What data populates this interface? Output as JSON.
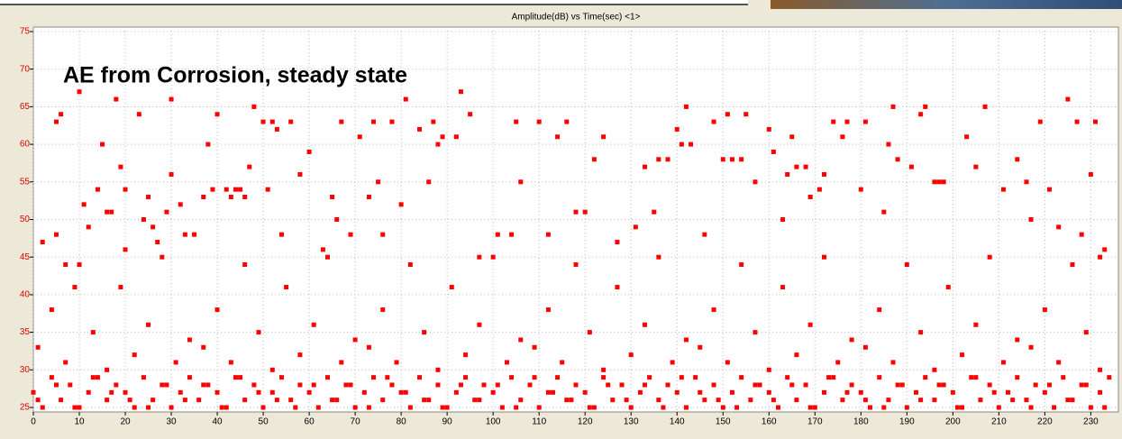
{
  "chart_data": {
    "type": "scatter",
    "title": "Amplitude(dB) vs Time(sec) <1>",
    "annotation": "AE from Corrosion, steady state",
    "color": "#ff0000",
    "grid": true,
    "xlim": [
      0,
      236
    ],
    "ylim": [
      24.4,
      75.6
    ],
    "xticks": [
      0,
      10,
      20,
      30,
      40,
      50,
      60,
      70,
      80,
      90,
      100,
      110,
      120,
      130,
      140,
      150,
      160,
      170,
      180,
      190,
      200,
      210,
      220,
      230
    ],
    "yticks": [
      25,
      30,
      35,
      40,
      45,
      50,
      55,
      60,
      65,
      70,
      75
    ],
    "x": [
      2,
      5,
      5,
      6,
      7,
      10,
      9,
      11,
      12,
      14,
      15,
      16,
      17,
      18,
      19,
      20,
      20,
      23,
      24,
      25,
      26,
      27,
      29,
      30,
      30,
      32,
      33,
      35,
      37,
      38,
      39,
      40,
      42,
      43,
      44,
      45,
      46,
      47,
      48,
      50,
      51,
      52,
      53,
      54,
      56,
      58,
      60,
      63,
      65,
      66,
      67,
      69,
      71,
      73,
      74,
      75,
      76,
      78,
      80,
      81,
      84,
      86,
      87,
      88,
      89,
      92,
      93,
      95,
      97,
      101,
      104,
      105,
      106,
      110,
      112,
      114,
      116,
      118,
      120,
      122,
      124,
      127,
      131,
      133,
      135,
      136,
      138,
      140,
      141,
      142,
      143,
      146,
      148,
      150,
      151,
      152,
      154,
      155,
      157,
      160,
      161,
      163,
      164,
      165,
      166,
      168,
      169,
      171,
      172,
      174,
      176,
      177,
      180,
      181,
      185,
      186,
      187,
      188,
      191,
      193,
      194,
      196,
      197,
      198,
      203,
      205,
      207,
      211,
      214,
      216,
      217,
      219,
      221,
      223,
      225,
      227,
      228,
      230,
      231,
      232,
      233,
      0,
      2,
      4,
      6,
      8,
      10,
      12,
      14,
      16,
      18,
      20,
      22,
      24,
      26,
      28,
      30,
      32,
      34,
      36,
      38,
      40,
      42,
      44,
      46,
      48,
      50,
      52,
      54,
      56,
      58,
      60,
      62,
      64,
      66,
      68,
      70,
      72,
      74,
      76,
      78,
      80,
      82,
      84,
      86,
      88,
      90,
      92,
      94,
      96,
      98,
      100,
      102,
      104,
      106,
      108,
      110,
      112,
      114,
      116,
      118,
      120,
      122,
      124,
      126,
      128,
      130,
      132,
      134,
      136,
      138,
      140,
      142,
      144,
      146,
      148,
      150,
      152,
      154,
      156,
      158,
      160,
      162,
      164,
      166,
      168,
      170,
      172,
      174,
      176,
      178,
      180,
      182,
      184,
      186,
      188,
      190,
      192,
      194,
      196,
      198,
      200,
      202,
      204,
      206,
      208,
      210,
      212,
      214,
      216,
      218,
      220,
      222,
      224,
      226,
      228,
      230,
      232,
      234,
      1,
      5,
      9,
      13,
      17,
      21,
      25,
      29,
      33,
      37,
      41,
      45,
      49,
      53,
      57,
      61,
      65,
      69,
      73,
      77,
      81,
      85,
      89,
      93,
      97,
      101,
      105,
      109,
      113,
      117,
      121,
      125,
      129,
      133,
      137,
      141,
      145,
      149,
      153,
      157,
      161,
      165,
      169,
      173,
      177,
      181,
      185,
      189,
      193,
      197,
      201,
      205,
      209,
      213,
      217,
      221,
      225,
      229,
      233,
      1,
      4,
      7,
      10,
      13,
      16,
      19,
      22,
      25,
      28,
      31,
      34,
      37,
      40,
      43,
      46,
      49,
      52,
      55,
      58,
      61,
      64,
      67,
      70,
      73,
      76,
      79,
      82,
      85,
      88,
      91,
      94,
      97,
      100,
      103,
      106,
      109,
      112,
      115,
      118,
      121,
      124,
      127,
      130,
      133,
      136,
      139,
      142,
      145,
      148,
      151,
      154,
      157,
      160,
      163,
      166,
      169,
      172,
      175,
      178,
      181,
      184,
      187,
      190,
      193,
      196,
      199,
      202,
      205,
      208,
      211,
      214,
      217,
      220,
      223,
      226,
      229,
      232
    ],
    "values": [
      47,
      63,
      48,
      64,
      44,
      67,
      41,
      52,
      49,
      54,
      60,
      51,
      51,
      66,
      57,
      54,
      46,
      64,
      50,
      53,
      49,
      47,
      51,
      66,
      56,
      52,
      48,
      48,
      53,
      60,
      54,
      64,
      54,
      53,
      54,
      54,
      53,
      57,
      65,
      63,
      54,
      63,
      62,
      48,
      63,
      56,
      59,
      46,
      53,
      50,
      63,
      48,
      61,
      53,
      63,
      55,
      48,
      63,
      52,
      66,
      62,
      55,
      63,
      60,
      61,
      61,
      67,
      64,
      45,
      48,
      48,
      63,
      55,
      63,
      48,
      61,
      63,
      51,
      51,
      58,
      61,
      47,
      49,
      57,
      51,
      58,
      58,
      62,
      60,
      65,
      60,
      48,
      63,
      58,
      64,
      58,
      58,
      64,
      55,
      62,
      59,
      50,
      56,
      61,
      57,
      57,
      53,
      54,
      56,
      63,
      61,
      63,
      54,
      63,
      51,
      60,
      65,
      58,
      57,
      64,
      65,
      55,
      55,
      55,
      61,
      57,
      65,
      54,
      58,
      55,
      50,
      63,
      54,
      49,
      66,
      63,
      48,
      56,
      63,
      45,
      46,
      27,
      25,
      29,
      26,
      28,
      25,
      27,
      29,
      26,
      28,
      27,
      25,
      29,
      26,
      28,
      25,
      27,
      29,
      26,
      28,
      27,
      25,
      29,
      26,
      28,
      25,
      27,
      29,
      26,
      28,
      27,
      25,
      29,
      26,
      28,
      25,
      27,
      29,
      26,
      28,
      27,
      25,
      29,
      26,
      28,
      25,
      27,
      29,
      26,
      28,
      27,
      25,
      29,
      26,
      28,
      25,
      27,
      29,
      26,
      28,
      27,
      25,
      29,
      26,
      28,
      25,
      27,
      29,
      26,
      28,
      27,
      25,
      29,
      26,
      28,
      25,
      27,
      29,
      26,
      28,
      27,
      25,
      29,
      26,
      28,
      25,
      27,
      29,
      26,
      28,
      27,
      25,
      29,
      26,
      28,
      25,
      27,
      29,
      26,
      28,
      27,
      25,
      29,
      26,
      28,
      25,
      27,
      29,
      26,
      28,
      27,
      25,
      29,
      26,
      28,
      25,
      27,
      29,
      26,
      28,
      25,
      29,
      27,
      26,
      25,
      28,
      26,
      28,
      25,
      29,
      27,
      26,
      25,
      28,
      26,
      28,
      25,
      29,
      27,
      26,
      25,
      28,
      26,
      28,
      25,
      29,
      27,
      26,
      25,
      28,
      26,
      28,
      25,
      29,
      27,
      26,
      25,
      28,
      26,
      28,
      25,
      29,
      27,
      26,
      25,
      28,
      26,
      28,
      25,
      29,
      27,
      26,
      25,
      28,
      26,
      28,
      25,
      33,
      38,
      31,
      44,
      35,
      30,
      41,
      32,
      36,
      45,
      31,
      34,
      33,
      38,
      31,
      44,
      35,
      30,
      41,
      32,
      36,
      45,
      31,
      34,
      33,
      38,
      31,
      44,
      35,
      30,
      41,
      32,
      36,
      45,
      31,
      34,
      33,
      38,
      31,
      44,
      35,
      30,
      41,
      32,
      36,
      45,
      31,
      34,
      33,
      38,
      31,
      44,
      35,
      30,
      41,
      32,
      36,
      45,
      31,
      34,
      33,
      38,
      31,
      44,
      35,
      30,
      41,
      32,
      36,
      45,
      31,
      34,
      33,
      38,
      31,
      44,
      35,
      30
    ]
  }
}
